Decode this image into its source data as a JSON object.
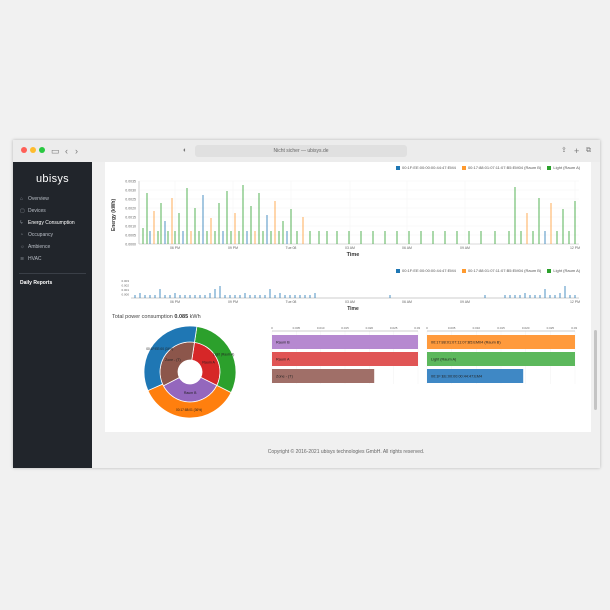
{
  "browser": {
    "address": "Nicht sicher — ubisys.de",
    "traffic_colors": [
      "#ff5f57",
      "#febc2e",
      "#28c840"
    ]
  },
  "sidebar": {
    "logo": "ubisys",
    "items": [
      {
        "label": "Overview",
        "icon": "home-icon"
      },
      {
        "label": "Devices",
        "icon": "devices-icon"
      },
      {
        "label": "Energy Consumption",
        "icon": "bolt-icon"
      },
      {
        "label": "Occupancy",
        "icon": "occupancy-icon"
      },
      {
        "label": "Ambience",
        "icon": "ambience-icon"
      },
      {
        "label": "HVAC",
        "icon": "hvac-icon"
      }
    ],
    "section": "Daily Reports"
  },
  "legend": {
    "series": [
      {
        "label": "00:1F:EE:00:00:00:44:47:EM4",
        "color": "#1f77b4"
      },
      {
        "label": "00:17:88:01:07:11:07:B5:EM04 (Raum B)",
        "color": "#ff9a2e"
      },
      {
        "label": "Light (Raum A)",
        "color": "#2ca02c"
      }
    ]
  },
  "main_chart": {
    "ylabel": "Energy (kWh)",
    "xlabel": "Time",
    "yticks": [
      "0.0035",
      "0.0030",
      "0.0025",
      "0.0020",
      "0.0015",
      "0.0010",
      "0.0005",
      "0.0000"
    ],
    "xticks": [
      "06 PM",
      "09 PM",
      "Tue 08",
      "03 AM",
      "06 AM",
      "09 AM",
      "12 PM"
    ]
  },
  "overview_chart": {
    "xlabel": "Time",
    "xticks": [
      "06 PM",
      "09 PM",
      "Tue 08",
      "03 AM",
      "06 AM",
      "09 AM",
      "12 PM"
    ],
    "yticks": [
      "0.003",
      "0.002",
      "0.001",
      "0.000"
    ]
  },
  "total": {
    "label": "Total power consumption",
    "value": "0.085",
    "unit": "kWh"
  },
  "sunburst": {
    "inner": [
      {
        "label": "Raum A",
        "value": 30,
        "color": "#d62728"
      },
      {
        "label": "Raum B",
        "value": 35,
        "color": "#9467bd"
      },
      {
        "label": "Zone - (T)",
        "value": 35,
        "color": "#8c564b"
      }
    ],
    "outer": [
      {
        "label": "Light (Raum A)",
        "value": 30,
        "color": "#2ca02c"
      },
      {
        "label": "00:17:88:01 (36%)",
        "value": 36,
        "color": "#ff7f0e"
      },
      {
        "label": "00:1F:EE:00 (34%)",
        "value": 34,
        "color": "#1f77b4"
      }
    ]
  },
  "bars_left": {
    "ticks": [
      "0",
      "0.005",
      "0.010",
      "0.015",
      "0.020",
      "0.025",
      "0.030"
    ],
    "max": 0.03,
    "rows": [
      {
        "label": "Raum B",
        "value": 0.03,
        "color": "#b689d0"
      },
      {
        "label": "Raum A",
        "value": 0.03,
        "color": "#e05555"
      },
      {
        "label": "Zone - (T)",
        "value": 0.021,
        "color": "#a06f68"
      }
    ]
  },
  "bars_right": {
    "ticks": [
      "0",
      "0.005",
      "0.010",
      "0.015",
      "0.020",
      "0.025",
      "0.030"
    ],
    "max": 0.03,
    "rows": [
      {
        "label": "00:17:88:01:07:11:07:B5:EM04 (Raum B)",
        "value": 0.03,
        "color": "#ff9a3c"
      },
      {
        "label": "Light (Raum A)",
        "value": 0.03,
        "color": "#5cb85c"
      },
      {
        "label": "00:1F:EE:00:00:00:44:47:EM4",
        "value": 0.0195,
        "color": "#3f88c5"
      }
    ]
  },
  "footer": "Copyright © 2016-2021 ubisys technologies GmbH. All rights reserved."
}
